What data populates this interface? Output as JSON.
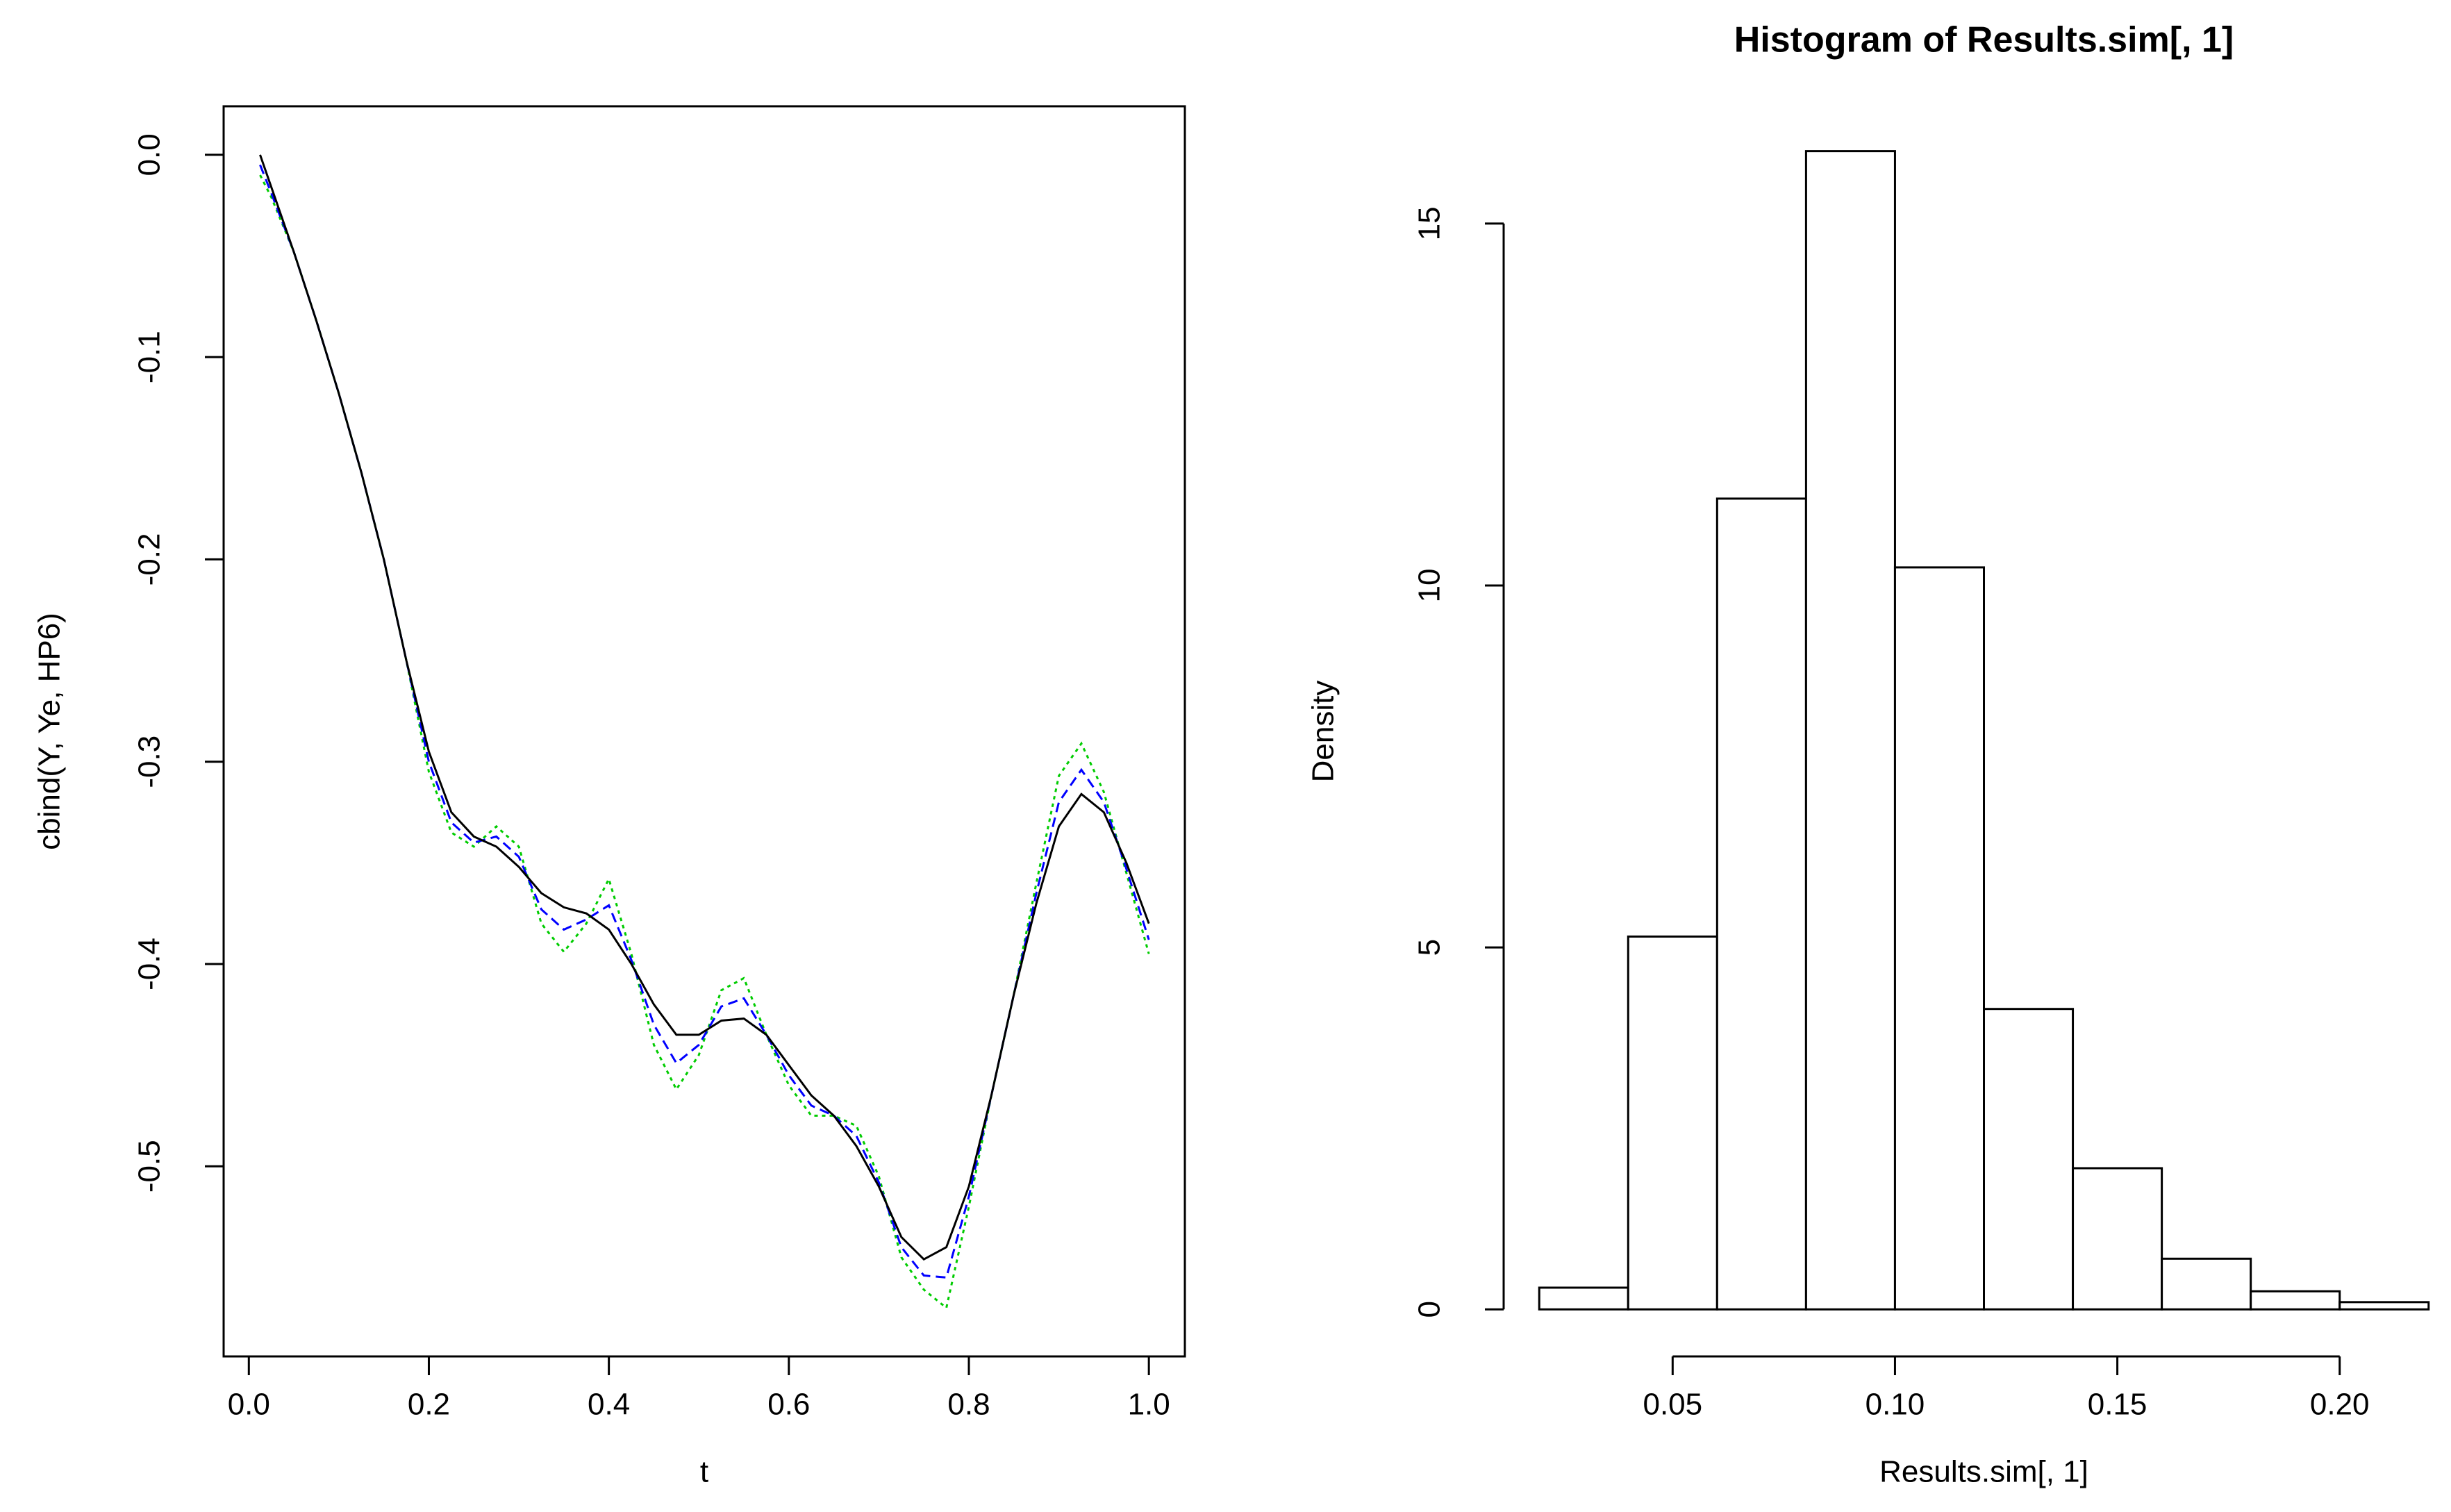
{
  "chart_data": [
    {
      "type": "line",
      "x_label": "t",
      "y_label": "cbind(Y, Ye, HP6)",
      "box": true,
      "x": [
        0.0125,
        0.025,
        0.05,
        0.075,
        0.1,
        0.125,
        0.15,
        0.175,
        0.2,
        0.225,
        0.25,
        0.275,
        0.3,
        0.325,
        0.35,
        0.375,
        0.4,
        0.425,
        0.45,
        0.475,
        0.5,
        0.525,
        0.55,
        0.575,
        0.6,
        0.625,
        0.65,
        0.675,
        0.7,
        0.725,
        0.75,
        0.775,
        0.8,
        0.825,
        0.85,
        0.875,
        0.9,
        0.925,
        0.95,
        0.975,
        1.0
      ],
      "series": [
        {
          "color": "#00cc00",
          "linestyle": "dotted",
          "values": [
            -0.01,
            -0.021,
            -0.048,
            -0.082,
            -0.118,
            -0.157,
            -0.2,
            -0.25,
            -0.305,
            -0.335,
            -0.342,
            -0.332,
            -0.342,
            -0.38,
            -0.394,
            -0.38,
            -0.358,
            -0.395,
            -0.44,
            -0.462,
            -0.445,
            -0.413,
            -0.407,
            -0.435,
            -0.46,
            -0.475,
            -0.475,
            -0.48,
            -0.505,
            -0.545,
            -0.561,
            -0.57,
            -0.52,
            -0.465,
            -0.415,
            -0.36,
            -0.307,
            -0.291,
            -0.315,
            -0.355,
            -0.395
          ]
        },
        {
          "color": "#0000ff",
          "linestyle": "dashed",
          "values": [
            -0.005,
            -0.019,
            -0.048,
            -0.082,
            -0.118,
            -0.157,
            -0.2,
            -0.25,
            -0.3,
            -0.33,
            -0.34,
            -0.337,
            -0.347,
            -0.373,
            -0.383,
            -0.378,
            -0.371,
            -0.398,
            -0.43,
            -0.449,
            -0.44,
            -0.421,
            -0.417,
            -0.435,
            -0.455,
            -0.47,
            -0.475,
            -0.485,
            -0.508,
            -0.54,
            -0.554,
            -0.555,
            -0.515,
            -0.465,
            -0.415,
            -0.365,
            -0.32,
            -0.304,
            -0.32,
            -0.353,
            -0.388
          ]
        },
        {
          "color": "#000000",
          "linestyle": "solid",
          "values": [
            0,
            -0.016,
            -0.048,
            -0.082,
            -0.118,
            -0.157,
            -0.2,
            -0.25,
            -0.295,
            -0.325,
            -0.337,
            -0.342,
            -0.352,
            -0.365,
            -0.372,
            -0.375,
            -0.383,
            -0.4,
            -0.42,
            -0.435,
            -0.435,
            -0.428,
            -0.427,
            -0.435,
            -0.45,
            -0.465,
            -0.475,
            -0.49,
            -0.51,
            -0.535,
            -0.546,
            -0.54,
            -0.51,
            -0.465,
            -0.415,
            -0.37,
            -0.332,
            -0.316,
            -0.325,
            -0.35,
            -0.38
          ]
        }
      ],
      "xlim": [
        -0.028,
        1.04
      ],
      "ylim": [
        -0.594,
        0.024
      ],
      "xticks": [
        {
          "value": 0,
          "label": "0.0"
        },
        0.2,
        0.4,
        0.6,
        0.8,
        {
          "value": 1,
          "label": "1.0"
        }
      ],
      "yticks": [
        {
          "value": 0,
          "label": "0.0"
        },
        -0.1,
        -0.2,
        -0.3,
        -0.4,
        -0.5
      ]
    },
    {
      "type": "histogram",
      "title": "Histogram of Results.sim[, 1]",
      "x_label": "Results.sim[, 1]",
      "y_label": "Density",
      "box": false,
      "bins": [
        0.02,
        0.04,
        0.06,
        0.08,
        0.1,
        0.12,
        0.14,
        0.16,
        0.18,
        0.2,
        0.22
      ],
      "values": [
        0.3,
        5.15,
        11.2,
        16,
        10.25,
        4.15,
        1.95,
        0.7,
        0.25,
        0.1
      ],
      "color": "#ffffff",
      "xlim": [
        0.012,
        0.228
      ],
      "ylim": [
        -0.65,
        16.62
      ],
      "xticks": [
        0.05,
        {
          "value": 0.1,
          "label": "0.10"
        },
        0.15,
        {
          "value": 0.2,
          "label": "0.20"
        }
      ],
      "yticks": [
        0,
        5,
        10,
        15
      ]
    }
  ]
}
